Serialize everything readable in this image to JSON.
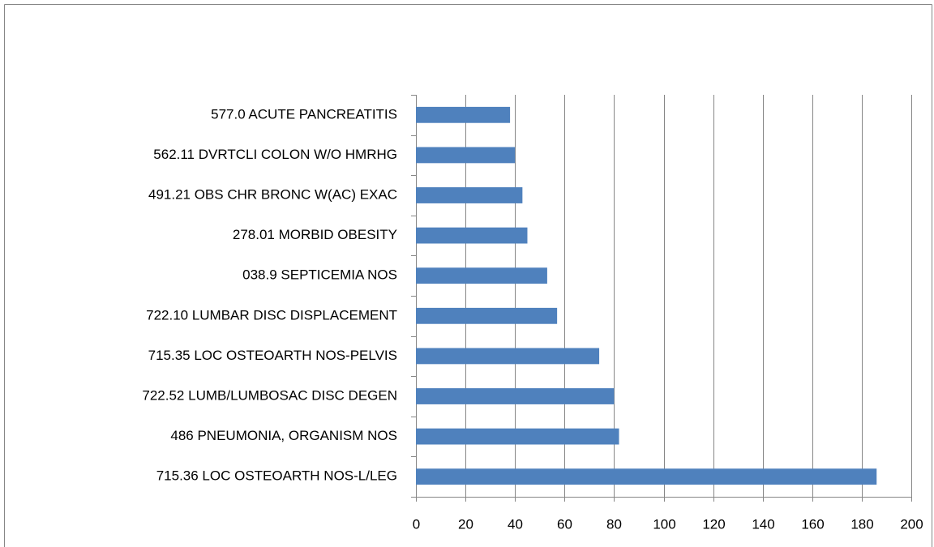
{
  "chart_data": {
    "type": "bar",
    "orientation": "horizontal",
    "categories": [
      "715.36 LOC OSTEOARTH NOS-L/LEG",
      "486 PNEUMONIA, ORGANISM NOS",
      "722.52 LUMB/LUMBOSAC DISC DEGEN",
      "715.35 LOC OSTEOARTH NOS-PELVIS",
      "722.10 LUMBAR DISC DISPLACEMENT",
      "038.9 SEPTICEMIA NOS",
      "278.01 MORBID OBESITY",
      "491.21 OBS CHR BRONC W(AC) EXAC",
      "562.11 DVRTCLI COLON W/O HMRHG",
      "577.0 ACUTE PANCREATITIS"
    ],
    "values": [
      186,
      82,
      80,
      74,
      57,
      53,
      45,
      43,
      40,
      38
    ],
    "color": "#4f81bd",
    "xlim": [
      0,
      200
    ],
    "xticks": [
      0,
      20,
      40,
      60,
      80,
      100,
      120,
      140,
      160,
      180,
      200
    ],
    "grid": true
  }
}
